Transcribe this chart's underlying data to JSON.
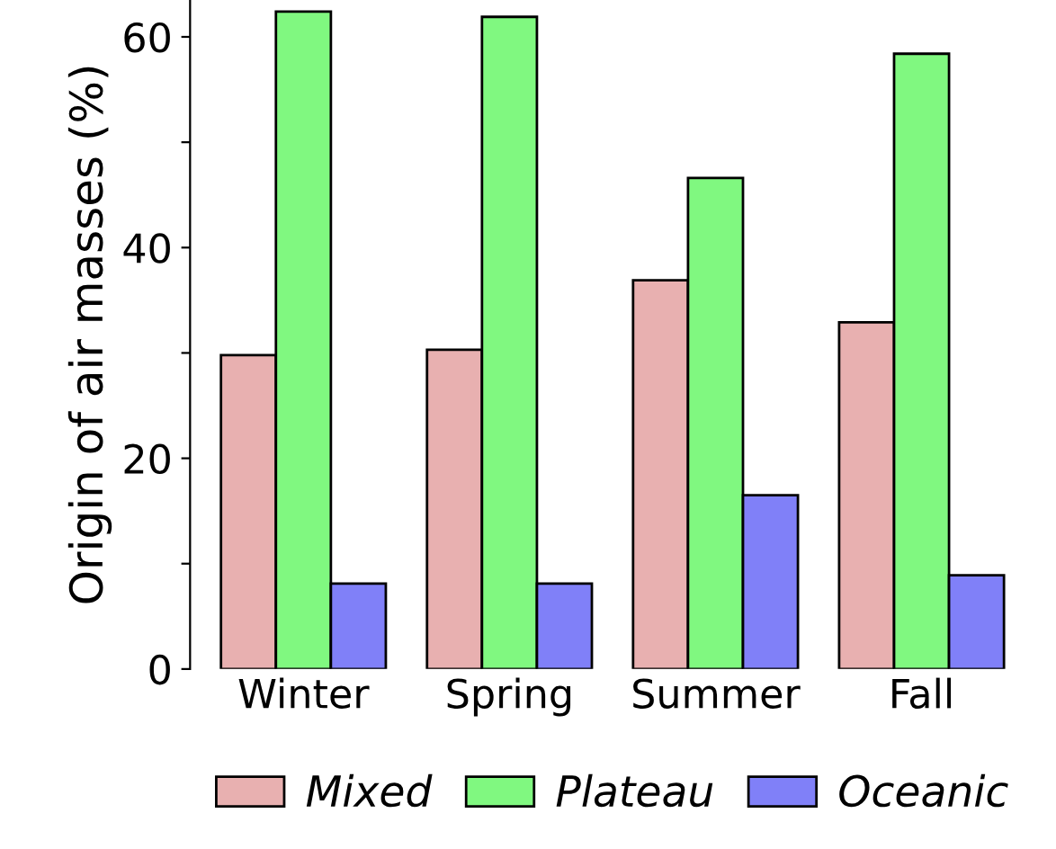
{
  "chart_data": {
    "type": "bar",
    "ylabel": "Origin of air masses (%)",
    "categories": [
      "Winter",
      "Spring",
      "Summer",
      "Fall"
    ],
    "series": [
      {
        "name": "Mixed",
        "color": "#e8b0b0",
        "values": [
          29.8,
          30.3,
          36.9,
          32.9
        ]
      },
      {
        "name": "Plateau",
        "color": "#80f880",
        "values": [
          62.4,
          61.9,
          46.6,
          58.4
        ]
      },
      {
        "name": "Oceanic",
        "color": "#8080f8",
        "values": [
          8.1,
          8.1,
          16.5,
          8.9
        ]
      }
    ],
    "ylim": [
      0,
      63.5
    ],
    "yticks": [
      0,
      {
        "value": 10,
        "label": null
      },
      20,
      {
        "value": 30,
        "label": null
      },
      40,
      {
        "value": 50,
        "label": null
      },
      60
    ],
    "grid": false,
    "legend": "bottom"
  }
}
